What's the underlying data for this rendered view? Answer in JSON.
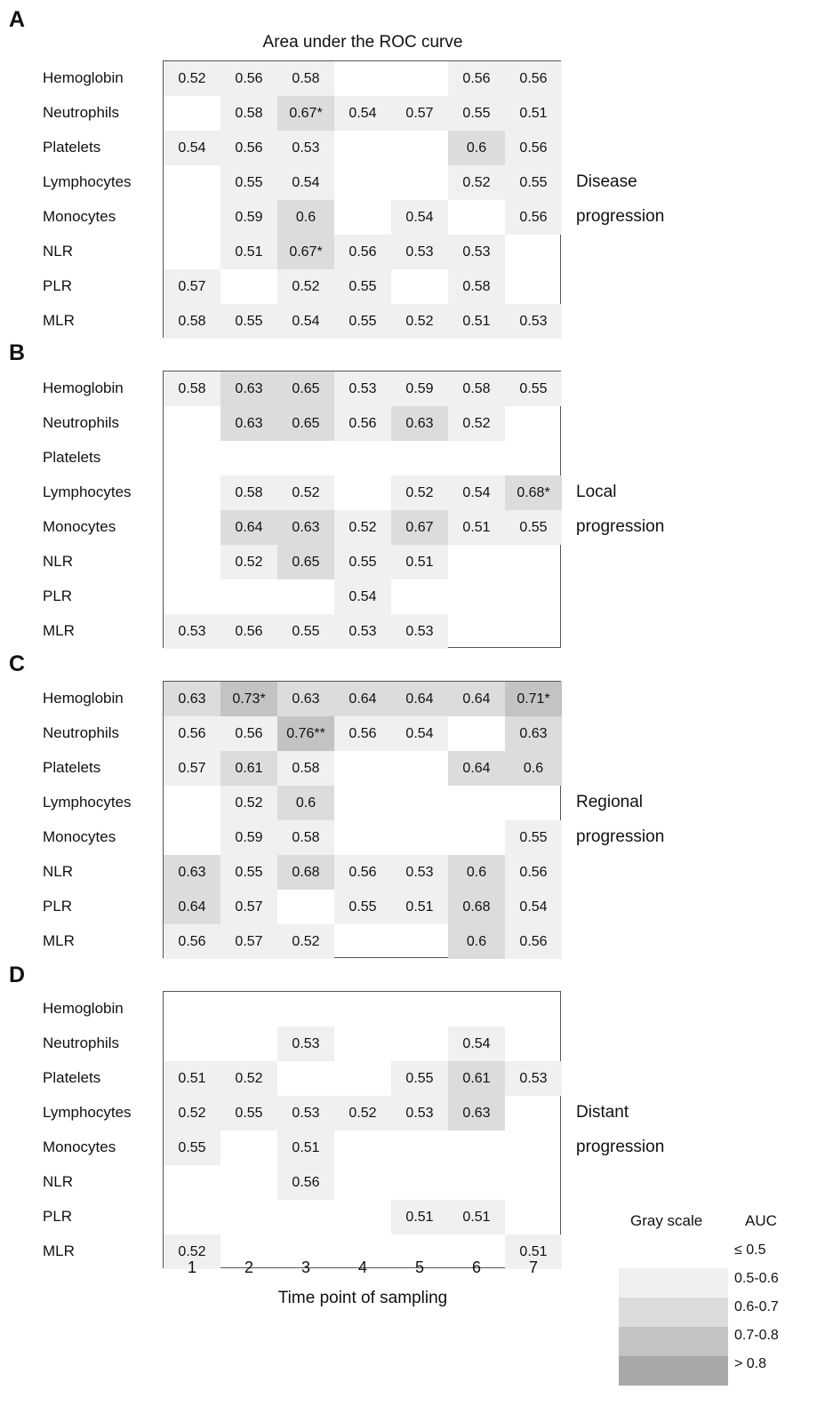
{
  "chart_data": {
    "type": "heatmap",
    "title": "Area under the ROC curve",
    "xlabel": "Time point of sampling",
    "x_ticks": [
      "1",
      "2",
      "3",
      "4",
      "5",
      "6",
      "7"
    ],
    "rows": [
      "Hemoglobin",
      "Neutrophils",
      "Platelets",
      "Lymphocytes",
      "Monocytes",
      "NLR",
      "PLR",
      "MLR"
    ],
    "panels": [
      {
        "letter": "A",
        "side_label": [
          "Disease",
          "progression"
        ],
        "values": [
          [
            "0.52",
            "0.56",
            "0.58",
            "",
            "",
            "0.56",
            "0.56"
          ],
          [
            "",
            "0.58",
            "0.67*",
            "0.54",
            "0.57",
            "0.55",
            "0.51"
          ],
          [
            "0.54",
            "0.56",
            "0.53",
            "",
            "",
            "0.6",
            "0.56"
          ],
          [
            "",
            "0.55",
            "0.54",
            "",
            "",
            "0.52",
            "0.55"
          ],
          [
            "",
            "0.59",
            "0.6",
            "",
            "0.54",
            "",
            "0.56"
          ],
          [
            "",
            "0.51",
            "0.67*",
            "0.56",
            "0.53",
            "0.53",
            ""
          ],
          [
            "0.57",
            "",
            "0.52",
            "0.55",
            "",
            "0.58",
            ""
          ],
          [
            "0.58",
            "0.55",
            "0.54",
            "0.55",
            "0.52",
            "0.51",
            "0.53"
          ]
        ]
      },
      {
        "letter": "B",
        "side_label": [
          "Local",
          "progression"
        ],
        "values": [
          [
            "0.58",
            "0.63",
            "0.65",
            "0.53",
            "0.59",
            "0.58",
            "0.55"
          ],
          [
            "",
            "0.63",
            "0.65",
            "0.56",
            "0.63",
            "0.52",
            ""
          ],
          [
            "",
            "",
            "",
            "",
            "",
            "",
            ""
          ],
          [
            "",
            "0.58",
            "0.52",
            "",
            "0.52",
            "0.54",
            "0.68*"
          ],
          [
            "",
            "0.64",
            "0.63",
            "0.52",
            "0.67",
            "0.51",
            "0.55"
          ],
          [
            "",
            "0.52",
            "0.65",
            "0.55",
            "0.51",
            "",
            ""
          ],
          [
            "",
            "",
            "",
            "0.54",
            "",
            "",
            ""
          ],
          [
            "0.53",
            "0.56",
            "0.55",
            "0.53",
            "0.53",
            "",
            ""
          ]
        ]
      },
      {
        "letter": "C",
        "side_label": [
          "Regional",
          "progression"
        ],
        "values": [
          [
            "0.63",
            "0.73*",
            "0.63",
            "0.64",
            "0.64",
            "0.64",
            "0.71*"
          ],
          [
            "0.56",
            "0.56",
            "0.76**",
            "0.56",
            "0.54",
            "",
            "0.63"
          ],
          [
            "0.57",
            "0.61",
            "0.58",
            "",
            "",
            "0.64",
            "0.6"
          ],
          [
            "",
            "0.52",
            "0.6",
            "",
            "",
            "",
            ""
          ],
          [
            "",
            "0.59",
            "0.58",
            "",
            "",
            "",
            "0.55"
          ],
          [
            "0.63",
            "0.55",
            "0.68",
            "0.56",
            "0.53",
            "0.6",
            "0.56"
          ],
          [
            "0.64",
            "0.57",
            "",
            "0.55",
            "0.51",
            "0.68",
            "0.54"
          ],
          [
            "0.56",
            "0.57",
            "0.52",
            "",
            "",
            "0.6",
            "0.56"
          ]
        ]
      },
      {
        "letter": "D",
        "side_label": [
          "Distant",
          "progression"
        ],
        "values": [
          [
            "",
            "",
            "",
            "",
            "",
            "",
            ""
          ],
          [
            "",
            "",
            "0.53",
            "",
            "",
            "0.54",
            ""
          ],
          [
            "0.51",
            "0.52",
            "",
            "",
            "0.55",
            "0.61",
            "0.53"
          ],
          [
            "0.52",
            "0.55",
            "0.53",
            "0.52",
            "0.53",
            "0.63",
            ""
          ],
          [
            "0.55",
            "",
            "0.51",
            "",
            "",
            "",
            ""
          ],
          [
            "",
            "",
            "0.56",
            "",
            "",
            "",
            ""
          ],
          [
            "",
            "",
            "",
            "",
            "0.51",
            "0.51",
            ""
          ],
          [
            "0.52",
            "",
            "",
            "",
            "",
            "",
            "0.51"
          ]
        ]
      }
    ],
    "legend": {
      "title_left": "Gray scale",
      "title_right": "AUC",
      "bins": [
        {
          "label": "≤ 0.5",
          "color": "#ffffff"
        },
        {
          "label": "0.5-0.6",
          "color": "#f0f0f0"
        },
        {
          "label": "0.6-0.7",
          "color": "#dcdcdc"
        },
        {
          "label": "0.7-0.8",
          "color": "#c3c3c3"
        },
        {
          "label": "> 0.8",
          "color": "#a8a8a8"
        }
      ]
    }
  }
}
